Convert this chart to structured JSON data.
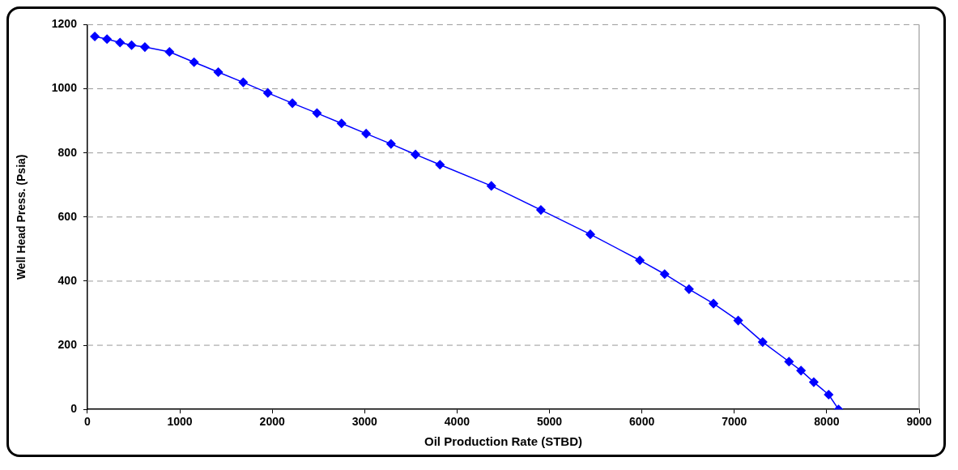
{
  "chart_data": {
    "type": "line",
    "xlabel": "Oil Production Rate (STBD)",
    "ylabel": "Well Head Press. (Psia)",
    "x": [
      80,
      212,
      353,
      478,
      622,
      888,
      1154,
      1416,
      1686,
      1952,
      2218,
      2484,
      2750,
      3016,
      3285,
      3550,
      3815,
      4371,
      4907,
      5442,
      5978,
      6246,
      6510,
      6775,
      7042,
      7307,
      7592,
      7722,
      7860,
      8021,
      8128
    ],
    "series": [
      {
        "color": "#0000ff",
        "values": [
          1163,
          1155,
          1144,
          1136,
          1130,
          1115,
          1083,
          1052,
          1020,
          987,
          955,
          924,
          892,
          860,
          828,
          795,
          763,
          697,
          622,
          546,
          465,
          422,
          375,
          330,
          277,
          210,
          149,
          121,
          85,
          46,
          0
        ]
      }
    ],
    "xlim": [
      0,
      9000
    ],
    "xticks": [
      0,
      1000,
      2000,
      3000,
      4000,
      5000,
      6000,
      7000,
      8000,
      9000
    ],
    "ylim": [
      0,
      1200
    ],
    "yticks": [
      0,
      200,
      400,
      600,
      800,
      1000,
      1200
    ],
    "grid": "y",
    "legend": false,
    "marker": "diamond",
    "line_style": "solid"
  }
}
